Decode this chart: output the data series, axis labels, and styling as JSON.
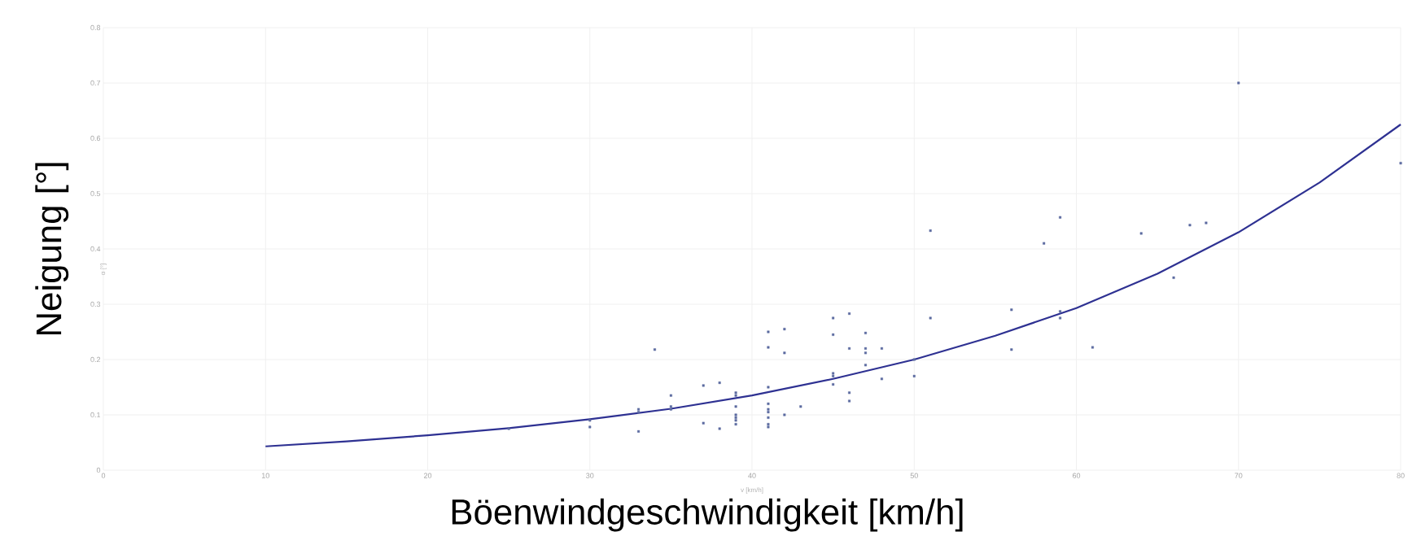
{
  "chart_data": {
    "type": "scatter",
    "xlabel": "Böenwindgeschwindigkeit [km/h]",
    "ylabel": "Neigung [°]",
    "annotations": [
      "v [km/h]",
      "α [°]"
    ],
    "xlim": [
      0,
      80
    ],
    "ylim": [
      0,
      0.8
    ],
    "xticks": [
      0,
      10,
      20,
      30,
      40,
      50,
      60,
      70,
      80
    ],
    "yticks": [
      0,
      0.1,
      0.2,
      0.3,
      0.4,
      0.5,
      0.6,
      0.7,
      0.8
    ],
    "grid": true,
    "marker": "square",
    "series": [
      {
        "color": "#5b6aa0",
        "x": [
          25,
          30,
          30,
          33,
          33,
          33,
          34,
          35,
          35,
          35,
          37,
          37,
          38,
          38,
          39,
          39,
          39,
          39,
          39,
          39,
          39,
          41,
          41,
          41,
          41,
          41,
          41,
          41,
          41,
          41,
          42,
          42,
          42,
          43,
          45,
          45,
          45,
          45,
          45,
          46,
          46,
          46,
          46,
          47,
          47,
          47,
          47,
          48,
          48,
          50,
          50,
          51,
          51,
          56,
          56,
          58,
          59,
          59,
          59,
          61,
          64,
          66,
          67,
          68,
          70,
          80
        ],
        "values": [
          0.075,
          0.09,
          0.078,
          0.11,
          0.105,
          0.07,
          0.218,
          0.135,
          0.115,
          0.11,
          0.153,
          0.085,
          0.158,
          0.075,
          0.14,
          0.135,
          0.115,
          0.1,
          0.095,
          0.09,
          0.083,
          0.25,
          0.222,
          0.15,
          0.12,
          0.11,
          0.105,
          0.095,
          0.083,
          0.078,
          0.255,
          0.212,
          0.1,
          0.115,
          0.275,
          0.245,
          0.175,
          0.17,
          0.155,
          0.283,
          0.22,
          0.14,
          0.125,
          0.248,
          0.22,
          0.212,
          0.19,
          0.22,
          0.165,
          0.2,
          0.17,
          0.433,
          0.275,
          0.29,
          0.218,
          0.41,
          0.457,
          0.287,
          0.275,
          0.222,
          0.428,
          0.348,
          0.443,
          0.447,
          0.7,
          0.555
        ]
      },
      {
        "type": "line",
        "color": "#2e3192",
        "marker": "none",
        "line_style": "solid",
        "x": [
          10,
          15,
          20,
          25,
          30,
          35,
          40,
          45,
          50,
          55,
          60,
          65,
          70,
          75,
          80
        ],
        "values": [
          0.043,
          0.052,
          0.063,
          0.076,
          0.092,
          0.111,
          0.135,
          0.165,
          0.2,
          0.243,
          0.293,
          0.355,
          0.43,
          0.52,
          0.625
        ]
      }
    ]
  }
}
